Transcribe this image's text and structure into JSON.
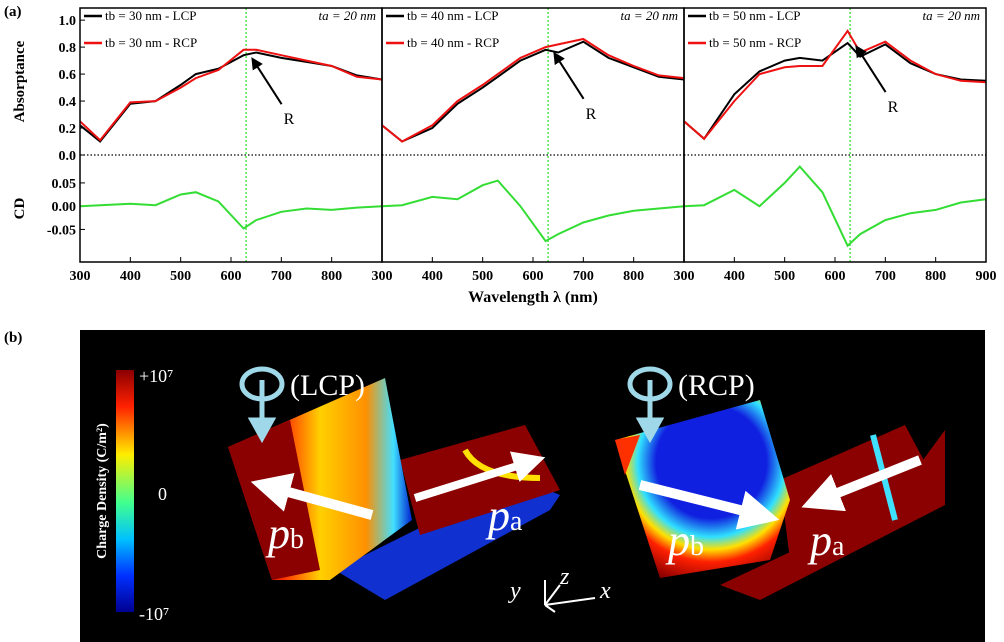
{
  "chart_data": [
    {
      "type": "line",
      "ylabel": "Absorptance",
      "y2label": "CD",
      "xlabel": "Wavelength λ (nm)",
      "annotation": "ta = 20 nm",
      "arrow_label": "R",
      "vline": 630,
      "x": [
        300,
        340,
        400,
        450,
        500,
        530,
        575,
        625,
        650,
        700,
        750,
        800,
        850,
        900
      ],
      "xlim": [
        300,
        900
      ],
      "xticks": [
        300,
        400,
        500,
        600,
        700,
        800
      ],
      "ylim": [
        0,
        1.09
      ],
      "yticks": [
        {
          "value": 0,
          "label": "0.0"
        },
        {
          "value": 0.2,
          "label": "0.2"
        },
        {
          "value": 0.4,
          "label": "0.4"
        },
        {
          "value": 0.6,
          "label": "0.6"
        },
        {
          "value": 0.8,
          "label": "0.8"
        },
        {
          "value": 1,
          "label": "1.0"
        }
      ],
      "y2lim": [
        -0.12,
        0.11
      ],
      "y2ticks": [
        {
          "value": -0.05,
          "label": "-0.05"
        },
        {
          "value": 0,
          "label": "0.00"
        },
        {
          "value": 0.05,
          "label": "0.05"
        }
      ],
      "series": [
        {
          "name": "tb = 30 nm - LCP",
          "color": "#000000",
          "values": [
            0.22,
            0.1,
            0.38,
            0.4,
            0.52,
            0.6,
            0.64,
            0.74,
            0.76,
            0.72,
            0.69,
            0.66,
            0.59,
            0.56
          ]
        },
        {
          "name": "tb = 30 nm - RCP",
          "color": "#ee1111",
          "values": [
            0.25,
            0.11,
            0.39,
            0.4,
            0.5,
            0.57,
            0.63,
            0.78,
            0.78,
            0.74,
            0.7,
            0.66,
            0.58,
            0.56
          ]
        },
        {
          "color": "#33dd33",
          "axis": "y2",
          "values": [
            0.0,
            0.002,
            0.005,
            0.002,
            0.025,
            0.03,
            0.01,
            -0.048,
            -0.03,
            -0.012,
            -0.005,
            -0.008,
            -0.003,
            0.0
          ]
        }
      ]
    },
    {
      "type": "line",
      "annotation": "ta = 20 nm",
      "arrow_label": "R",
      "vline": 630,
      "x": [
        300,
        340,
        400,
        450,
        500,
        530,
        575,
        625,
        650,
        700,
        750,
        800,
        850,
        900
      ],
      "xlim": [
        300,
        900
      ],
      "xticks": [
        300,
        400,
        500,
        600,
        700,
        800
      ],
      "ylim": [
        0,
        1.09
      ],
      "y2lim": [
        -0.12,
        0.11
      ],
      "series": [
        {
          "name": "tb = 40 nm - LCP",
          "color": "#000000",
          "values": [
            0.22,
            0.1,
            0.2,
            0.38,
            0.5,
            0.58,
            0.7,
            0.78,
            0.76,
            0.84,
            0.72,
            0.65,
            0.58,
            0.56
          ]
        },
        {
          "name": "tb = 40 nm - RCP",
          "color": "#ee1111",
          "values": [
            0.22,
            0.1,
            0.22,
            0.4,
            0.52,
            0.6,
            0.72,
            0.8,
            0.82,
            0.86,
            0.74,
            0.66,
            0.59,
            0.57
          ]
        },
        {
          "color": "#33dd33",
          "axis": "y2",
          "values": [
            0.0,
            0.002,
            0.02,
            0.015,
            0.045,
            0.055,
            0.0,
            -0.075,
            -0.06,
            -0.035,
            -0.02,
            -0.01,
            -0.005,
            0.0
          ]
        }
      ]
    },
    {
      "type": "line",
      "annotation": "ta = 20 nm",
      "arrow_label": "R",
      "vline": 630,
      "x": [
        300,
        340,
        400,
        450,
        500,
        530,
        575,
        625,
        650,
        700,
        750,
        800,
        850,
        900
      ],
      "xlim": [
        300,
        900
      ],
      "xticks": [
        300,
        400,
        500,
        600,
        700,
        800,
        900
      ],
      "ylim": [
        0,
        1.09
      ],
      "y2lim": [
        -0.12,
        0.11
      ],
      "series": [
        {
          "name": "tb = 50 nm - LCP",
          "color": "#000000",
          "values": [
            0.25,
            0.12,
            0.45,
            0.62,
            0.7,
            0.72,
            0.7,
            0.83,
            0.73,
            0.82,
            0.68,
            0.6,
            0.56,
            0.55
          ]
        },
        {
          "name": "tb = 50 nm - RCP",
          "color": "#ee1111",
          "values": [
            0.25,
            0.12,
            0.4,
            0.6,
            0.65,
            0.66,
            0.66,
            0.92,
            0.76,
            0.84,
            0.7,
            0.6,
            0.55,
            0.54
          ]
        },
        {
          "color": "#33dd33",
          "axis": "y2",
          "values": [
            0.0,
            0.002,
            0.035,
            0.0,
            0.05,
            0.085,
            0.03,
            -0.085,
            -0.06,
            -0.03,
            -0.015,
            -0.008,
            0.008,
            0.015
          ]
        }
      ]
    }
  ],
  "panel_a_label": "(a)",
  "panel_b": {
    "label": "(b)",
    "colorbar_title": "Charge Density (C/m²)",
    "colorbar_max": "+10⁷",
    "colorbar_mid": "0",
    "colorbar_min": "-10⁷",
    "left_label": "(LCP)",
    "right_label": "(RCP)",
    "p": "p",
    "b": "b",
    "a": "a",
    "axis_y": "y",
    "axis_z": "z",
    "axis_x": "x"
  }
}
